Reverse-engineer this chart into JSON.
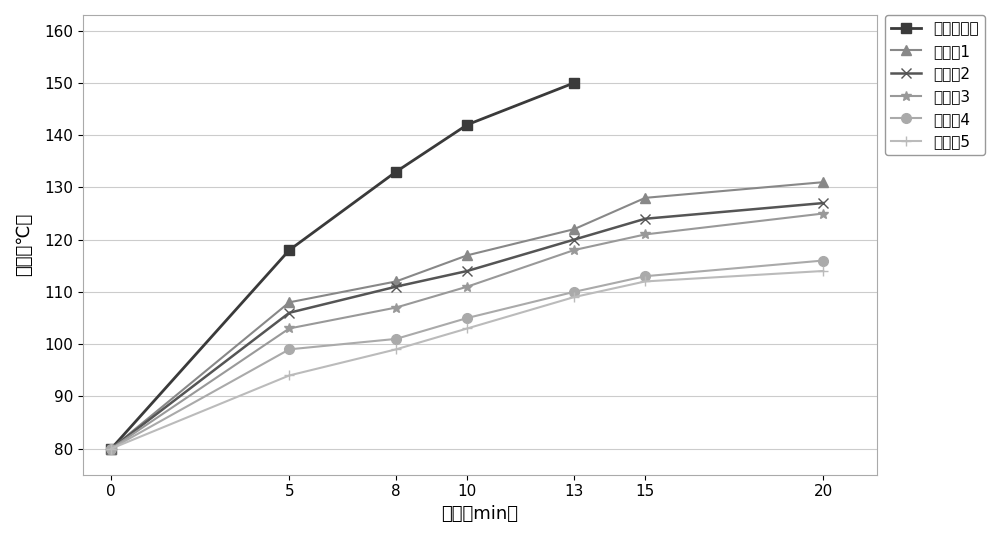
{
  "x": [
    0,
    5,
    8,
    10,
    13,
    15,
    20
  ],
  "series": {
    "对比实施例": [
      80,
      118,
      133,
      142,
      150,
      null,
      null
    ],
    "实施例1": [
      80,
      108,
      112,
      117,
      122,
      128,
      131
    ],
    "实施例2": [
      80,
      106,
      111,
      114,
      120,
      124,
      127
    ],
    "实施例3": [
      80,
      103,
      107,
      111,
      118,
      121,
      125
    ],
    "实施例4": [
      80,
      99,
      101,
      105,
      110,
      113,
      116
    ],
    "实施例5": [
      80,
      94,
      99,
      103,
      109,
      112,
      114
    ]
  },
  "markers": {
    "对比实施例": "s",
    "实施例1": "^",
    "实施例2": "x",
    "实施例3": "*",
    "实施例4": "o",
    "实施例5": "+"
  },
  "colors": {
    "对比实施例": "#3a3a3a",
    "实施例1": "#888888",
    "实施例2": "#555555",
    "实施例3": "#999999",
    "实施例4": "#aaaaaa",
    "实施例5": "#bbbbbb"
  },
  "linewidths": {
    "对比实施例": 2.0,
    "实施例1": 1.5,
    "实施例2": 1.8,
    "实施例3": 1.5,
    "实施例4": 1.5,
    "实施例5": 1.5
  },
  "xlabel": "时间（min）",
  "ylabel": "温度（℃）",
  "ylim": [
    75,
    163
  ],
  "yticks": [
    80,
    90,
    100,
    110,
    120,
    130,
    140,
    150,
    160
  ],
  "xticks": [
    0,
    5,
    8,
    10,
    13,
    15,
    20
  ],
  "legend_order": [
    "对比实施例",
    "实施例1",
    "实施例2",
    "实施例3",
    "实施例4",
    "实施例5"
  ],
  "bg_color": "#ffffff",
  "grid_color": "#cccccc",
  "markersize": 7
}
